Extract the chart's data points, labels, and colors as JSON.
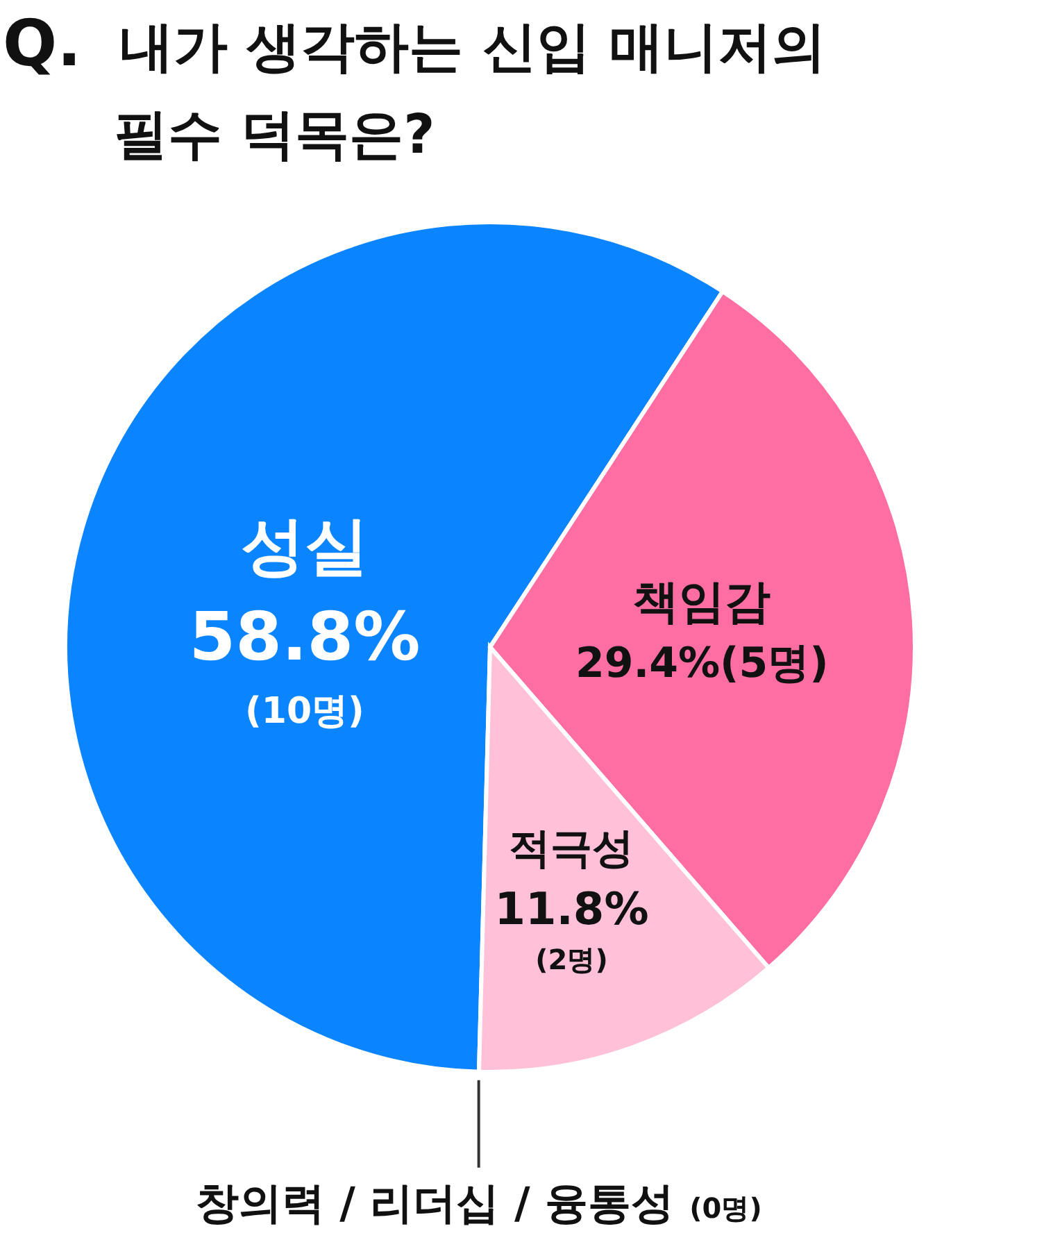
{
  "chart_data": {
    "type": "pie",
    "title": "Q. 내가 생각하는 신입 매니저의 필수 덕목은?",
    "categories": [
      "성실",
      "책임감",
      "적극성",
      "창의력 / 리더십 / 융통성"
    ],
    "values": [
      58.8,
      29.4,
      11.8,
      0
    ],
    "colors": [
      "#0a84ff",
      "#ff6ea2",
      "#ffc0d8",
      "#333333"
    ],
    "value_labels": [
      "58.8%\n(10명)",
      "29.4%(5명)",
      "11.8%\n(2명)",
      "(0명)"
    ]
  }
}
